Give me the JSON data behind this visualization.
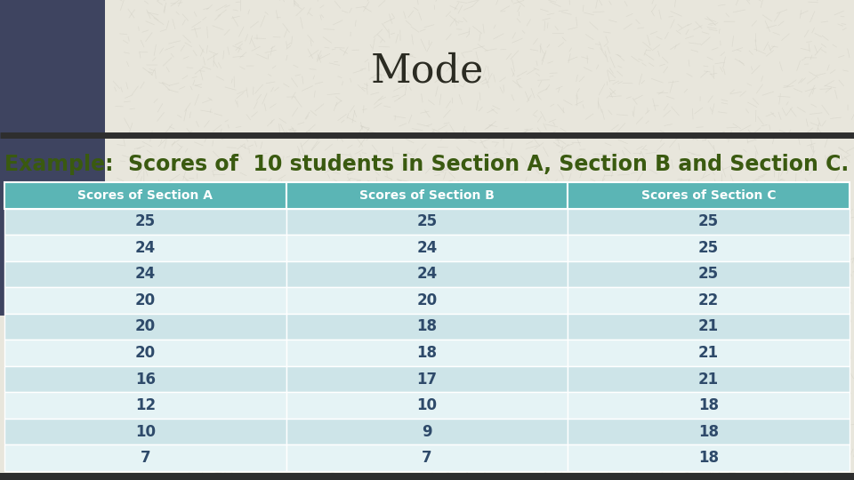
{
  "title": "Mode",
  "subtitle": "Example:  Scores of  10 students in Section A, Section B and Section C.",
  "columns": [
    "Scores of Section A",
    "Scores of Section B",
    "Scores of Section C"
  ],
  "rows": [
    [
      25,
      25,
      25
    ],
    [
      24,
      24,
      25
    ],
    [
      24,
      24,
      25
    ],
    [
      20,
      20,
      22
    ],
    [
      20,
      18,
      21
    ],
    [
      20,
      18,
      21
    ],
    [
      16,
      17,
      21
    ],
    [
      12,
      10,
      18
    ],
    [
      10,
      9,
      18
    ],
    [
      7,
      7,
      18
    ]
  ],
  "bg_color": "#e8e6dc",
  "header_bg": "#5bb5b5",
  "header_text_color": "#ffffff",
  "row_even_bg": "#cde4e8",
  "row_odd_bg": "#e5f3f5",
  "cell_text_color": "#2e4a6a",
  "title_color": "#2b2b22",
  "subtitle_color": "#3a5a10",
  "divider_color": "#2e2e2e",
  "left_panel_color": "#3e4460",
  "title_fontsize": 32,
  "subtitle_fontsize": 17,
  "header_fontsize": 10,
  "cell_fontsize": 12
}
